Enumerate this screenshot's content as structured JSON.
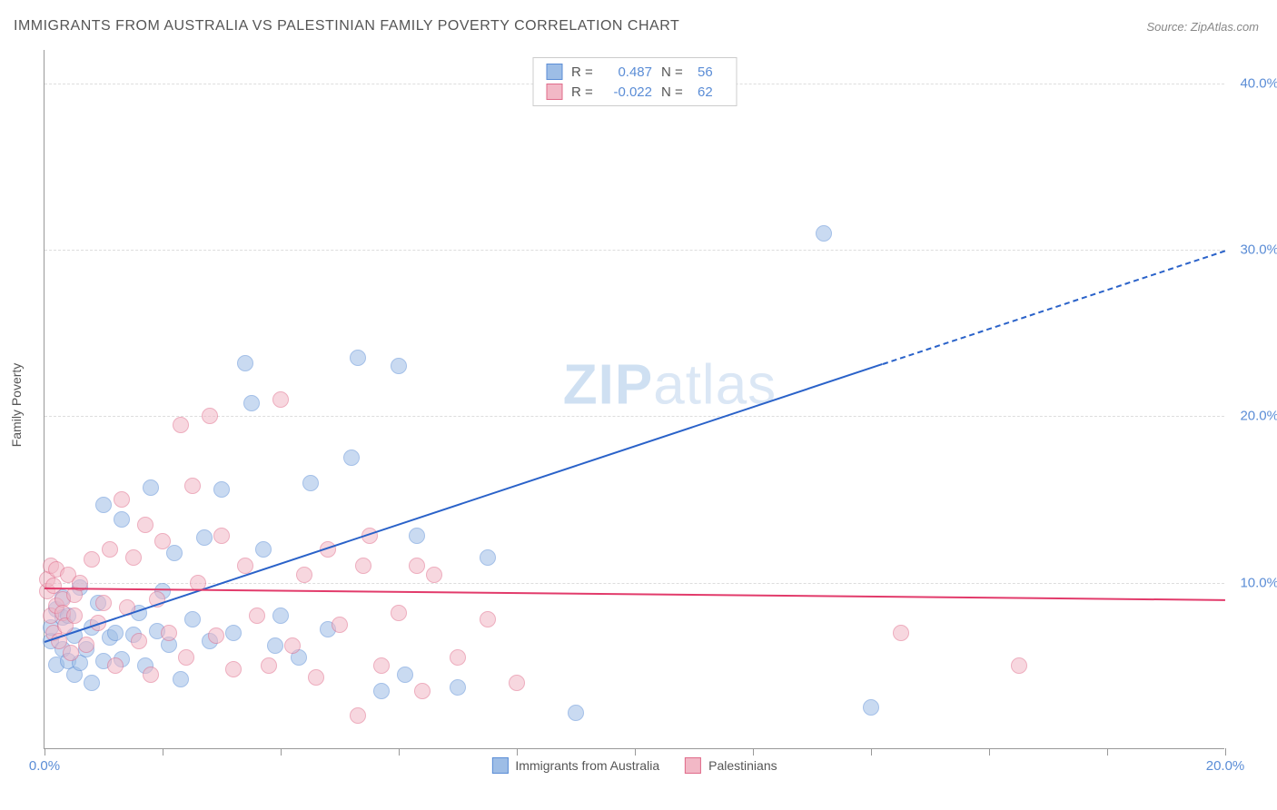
{
  "title": "IMMIGRANTS FROM AUSTRALIA VS PALESTINIAN FAMILY POVERTY CORRELATION CHART",
  "source": "Source: ZipAtlas.com",
  "ylabel": "Family Poverty",
  "watermark_bold": "ZIP",
  "watermark_rest": "atlas",
  "chart": {
    "type": "scatter",
    "xlim": [
      0,
      20
    ],
    "ylim": [
      0,
      42
    ],
    "x_ticks": [
      0,
      2,
      4,
      6,
      8,
      10,
      12,
      14,
      16,
      18,
      20
    ],
    "x_tick_labels": {
      "0": "0.0%",
      "20": "20.0%"
    },
    "y_gridlines": [
      10,
      20,
      30,
      40
    ],
    "y_tick_labels": {
      "10": "10.0%",
      "20": "20.0%",
      "30": "30.0%",
      "40": "40.0%"
    },
    "plot_bg": "#ffffff",
    "grid_color": "#dddddd",
    "axis_color": "#999999",
    "tick_label_color": "#5b8dd6",
    "marker_radius": 9,
    "marker_opacity": 0.55,
    "series": [
      {
        "name": "Immigrants from Australia",
        "fill": "#9dbde6",
        "stroke": "#5b8dd6",
        "R": "0.487",
        "N": "56",
        "trend": {
          "x1": 0,
          "y1": 6.5,
          "x2": 14.2,
          "y2": 23.2,
          "x2_ext": 20,
          "y2_ext": 30,
          "color": "#2a62c9",
          "width": 2
        },
        "points": [
          [
            0.1,
            6.5
          ],
          [
            0.1,
            7.3
          ],
          [
            0.2,
            5.1
          ],
          [
            0.2,
            8.4
          ],
          [
            0.3,
            6.0
          ],
          [
            0.3,
            7.9
          ],
          [
            0.3,
            9.1
          ],
          [
            0.4,
            5.3
          ],
          [
            0.4,
            8.0
          ],
          [
            0.5,
            4.5
          ],
          [
            0.5,
            6.8
          ],
          [
            0.6,
            5.2
          ],
          [
            0.6,
            9.7
          ],
          [
            0.7,
            6.0
          ],
          [
            0.8,
            7.3
          ],
          [
            0.8,
            4.0
          ],
          [
            0.9,
            8.8
          ],
          [
            1.0,
            14.7
          ],
          [
            1.0,
            5.3
          ],
          [
            1.1,
            6.7
          ],
          [
            1.2,
            7.0
          ],
          [
            1.3,
            13.8
          ],
          [
            1.3,
            5.4
          ],
          [
            1.5,
            6.9
          ],
          [
            1.6,
            8.2
          ],
          [
            1.7,
            5.0
          ],
          [
            1.8,
            15.7
          ],
          [
            1.9,
            7.1
          ],
          [
            2.0,
            9.5
          ],
          [
            2.1,
            6.3
          ],
          [
            2.2,
            11.8
          ],
          [
            2.3,
            4.2
          ],
          [
            2.5,
            7.8
          ],
          [
            2.7,
            12.7
          ],
          [
            2.8,
            6.5
          ],
          [
            3.0,
            15.6
          ],
          [
            3.2,
            7.0
          ],
          [
            3.4,
            23.2
          ],
          [
            3.5,
            20.8
          ],
          [
            3.7,
            12.0
          ],
          [
            3.9,
            6.2
          ],
          [
            4.0,
            8.0
          ],
          [
            4.3,
            5.5
          ],
          [
            4.5,
            16.0
          ],
          [
            4.8,
            7.2
          ],
          [
            5.2,
            17.5
          ],
          [
            5.3,
            23.5
          ],
          [
            5.7,
            3.5
          ],
          [
            6.0,
            23.0
          ],
          [
            6.1,
            4.5
          ],
          [
            6.3,
            12.8
          ],
          [
            7.0,
            3.7
          ],
          [
            7.5,
            11.5
          ],
          [
            9.0,
            2.2
          ],
          [
            13.2,
            31.0
          ],
          [
            14.0,
            2.5
          ]
        ]
      },
      {
        "name": "Palestinians",
        "fill": "#f2b8c6",
        "stroke": "#e06b8a",
        "R": "-0.022",
        "N": "62",
        "trend": {
          "x1": 0,
          "y1": 9.7,
          "x2": 20,
          "y2": 9.0,
          "color": "#e23b6b",
          "width": 2
        },
        "points": [
          [
            0.05,
            9.5
          ],
          [
            0.05,
            10.2
          ],
          [
            0.1,
            8.0
          ],
          [
            0.1,
            11.0
          ],
          [
            0.15,
            7.0
          ],
          [
            0.15,
            9.8
          ],
          [
            0.2,
            8.6
          ],
          [
            0.2,
            10.8
          ],
          [
            0.25,
            6.5
          ],
          [
            0.3,
            9.0
          ],
          [
            0.3,
            8.2
          ],
          [
            0.35,
            7.4
          ],
          [
            0.4,
            10.5
          ],
          [
            0.45,
            5.8
          ],
          [
            0.5,
            9.3
          ],
          [
            0.5,
            8.0
          ],
          [
            0.6,
            10.0
          ],
          [
            0.7,
            6.3
          ],
          [
            0.8,
            11.4
          ],
          [
            0.9,
            7.6
          ],
          [
            1.0,
            8.8
          ],
          [
            1.1,
            12.0
          ],
          [
            1.2,
            5.0
          ],
          [
            1.3,
            15.0
          ],
          [
            1.4,
            8.5
          ],
          [
            1.5,
            11.5
          ],
          [
            1.6,
            6.5
          ],
          [
            1.7,
            13.5
          ],
          [
            1.8,
            4.5
          ],
          [
            1.9,
            9.0
          ],
          [
            2.0,
            12.5
          ],
          [
            2.1,
            7.0
          ],
          [
            2.3,
            19.5
          ],
          [
            2.4,
            5.5
          ],
          [
            2.5,
            15.8
          ],
          [
            2.6,
            10.0
          ],
          [
            2.8,
            20.0
          ],
          [
            2.9,
            6.8
          ],
          [
            3.0,
            12.8
          ],
          [
            3.2,
            4.8
          ],
          [
            3.4,
            11.0
          ],
          [
            3.6,
            8.0
          ],
          [
            3.8,
            5.0
          ],
          [
            4.0,
            21.0
          ],
          [
            4.2,
            6.2
          ],
          [
            4.4,
            10.5
          ],
          [
            4.6,
            4.3
          ],
          [
            4.8,
            12.0
          ],
          [
            5.0,
            7.5
          ],
          [
            5.3,
            2.0
          ],
          [
            5.4,
            11.0
          ],
          [
            5.5,
            12.8
          ],
          [
            5.7,
            5.0
          ],
          [
            6.0,
            8.2
          ],
          [
            6.3,
            11.0
          ],
          [
            6.4,
            3.5
          ],
          [
            6.6,
            10.5
          ],
          [
            7.0,
            5.5
          ],
          [
            7.5,
            7.8
          ],
          [
            8.0,
            4.0
          ],
          [
            14.5,
            7.0
          ],
          [
            16.5,
            5.0
          ]
        ]
      }
    ],
    "legend_top": {
      "r_label": "R =",
      "n_label": "N ="
    },
    "legend_bottom_labels": [
      "Immigrants from Australia",
      "Palestinians"
    ]
  }
}
